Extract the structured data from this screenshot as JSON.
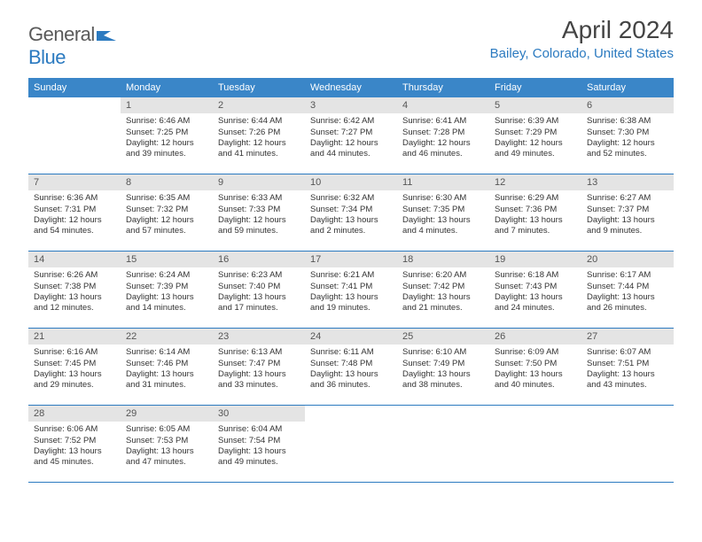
{
  "logo": {
    "text1": "General",
    "text2": "Blue"
  },
  "title": "April 2024",
  "location": "Bailey, Colorado, United States",
  "colors": {
    "header_bg": "#3a86c8",
    "accent": "#2b7ac0",
    "daynum_bg": "#e4e4e4",
    "text": "#333333",
    "title_text": "#444444",
    "logo_gray": "#5a5a5a"
  },
  "weekdays": [
    "Sunday",
    "Monday",
    "Tuesday",
    "Wednesday",
    "Thursday",
    "Friday",
    "Saturday"
  ],
  "weeks": [
    [
      null,
      {
        "n": "1",
        "sr": "6:46 AM",
        "ss": "7:25 PM",
        "d1": "Daylight: 12 hours",
        "d2": "and 39 minutes."
      },
      {
        "n": "2",
        "sr": "6:44 AM",
        "ss": "7:26 PM",
        "d1": "Daylight: 12 hours",
        "d2": "and 41 minutes."
      },
      {
        "n": "3",
        "sr": "6:42 AM",
        "ss": "7:27 PM",
        "d1": "Daylight: 12 hours",
        "d2": "and 44 minutes."
      },
      {
        "n": "4",
        "sr": "6:41 AM",
        "ss": "7:28 PM",
        "d1": "Daylight: 12 hours",
        "d2": "and 46 minutes."
      },
      {
        "n": "5",
        "sr": "6:39 AM",
        "ss": "7:29 PM",
        "d1": "Daylight: 12 hours",
        "d2": "and 49 minutes."
      },
      {
        "n": "6",
        "sr": "6:38 AM",
        "ss": "7:30 PM",
        "d1": "Daylight: 12 hours",
        "d2": "and 52 minutes."
      }
    ],
    [
      {
        "n": "7",
        "sr": "6:36 AM",
        "ss": "7:31 PM",
        "d1": "Daylight: 12 hours",
        "d2": "and 54 minutes."
      },
      {
        "n": "8",
        "sr": "6:35 AM",
        "ss": "7:32 PM",
        "d1": "Daylight: 12 hours",
        "d2": "and 57 minutes."
      },
      {
        "n": "9",
        "sr": "6:33 AM",
        "ss": "7:33 PM",
        "d1": "Daylight: 12 hours",
        "d2": "and 59 minutes."
      },
      {
        "n": "10",
        "sr": "6:32 AM",
        "ss": "7:34 PM",
        "d1": "Daylight: 13 hours",
        "d2": "and 2 minutes."
      },
      {
        "n": "11",
        "sr": "6:30 AM",
        "ss": "7:35 PM",
        "d1": "Daylight: 13 hours",
        "d2": "and 4 minutes."
      },
      {
        "n": "12",
        "sr": "6:29 AM",
        "ss": "7:36 PM",
        "d1": "Daylight: 13 hours",
        "d2": "and 7 minutes."
      },
      {
        "n": "13",
        "sr": "6:27 AM",
        "ss": "7:37 PM",
        "d1": "Daylight: 13 hours",
        "d2": "and 9 minutes."
      }
    ],
    [
      {
        "n": "14",
        "sr": "6:26 AM",
        "ss": "7:38 PM",
        "d1": "Daylight: 13 hours",
        "d2": "and 12 minutes."
      },
      {
        "n": "15",
        "sr": "6:24 AM",
        "ss": "7:39 PM",
        "d1": "Daylight: 13 hours",
        "d2": "and 14 minutes."
      },
      {
        "n": "16",
        "sr": "6:23 AM",
        "ss": "7:40 PM",
        "d1": "Daylight: 13 hours",
        "d2": "and 17 minutes."
      },
      {
        "n": "17",
        "sr": "6:21 AM",
        "ss": "7:41 PM",
        "d1": "Daylight: 13 hours",
        "d2": "and 19 minutes."
      },
      {
        "n": "18",
        "sr": "6:20 AM",
        "ss": "7:42 PM",
        "d1": "Daylight: 13 hours",
        "d2": "and 21 minutes."
      },
      {
        "n": "19",
        "sr": "6:18 AM",
        "ss": "7:43 PM",
        "d1": "Daylight: 13 hours",
        "d2": "and 24 minutes."
      },
      {
        "n": "20",
        "sr": "6:17 AM",
        "ss": "7:44 PM",
        "d1": "Daylight: 13 hours",
        "d2": "and 26 minutes."
      }
    ],
    [
      {
        "n": "21",
        "sr": "6:16 AM",
        "ss": "7:45 PM",
        "d1": "Daylight: 13 hours",
        "d2": "and 29 minutes."
      },
      {
        "n": "22",
        "sr": "6:14 AM",
        "ss": "7:46 PM",
        "d1": "Daylight: 13 hours",
        "d2": "and 31 minutes."
      },
      {
        "n": "23",
        "sr": "6:13 AM",
        "ss": "7:47 PM",
        "d1": "Daylight: 13 hours",
        "d2": "and 33 minutes."
      },
      {
        "n": "24",
        "sr": "6:11 AM",
        "ss": "7:48 PM",
        "d1": "Daylight: 13 hours",
        "d2": "and 36 minutes."
      },
      {
        "n": "25",
        "sr": "6:10 AM",
        "ss": "7:49 PM",
        "d1": "Daylight: 13 hours",
        "d2": "and 38 minutes."
      },
      {
        "n": "26",
        "sr": "6:09 AM",
        "ss": "7:50 PM",
        "d1": "Daylight: 13 hours",
        "d2": "and 40 minutes."
      },
      {
        "n": "27",
        "sr": "6:07 AM",
        "ss": "7:51 PM",
        "d1": "Daylight: 13 hours",
        "d2": "and 43 minutes."
      }
    ],
    [
      {
        "n": "28",
        "sr": "6:06 AM",
        "ss": "7:52 PM",
        "d1": "Daylight: 13 hours",
        "d2": "and 45 minutes."
      },
      {
        "n": "29",
        "sr": "6:05 AM",
        "ss": "7:53 PM",
        "d1": "Daylight: 13 hours",
        "d2": "and 47 minutes."
      },
      {
        "n": "30",
        "sr": "6:04 AM",
        "ss": "7:54 PM",
        "d1": "Daylight: 13 hours",
        "d2": "and 49 minutes."
      },
      null,
      null,
      null,
      null
    ]
  ]
}
